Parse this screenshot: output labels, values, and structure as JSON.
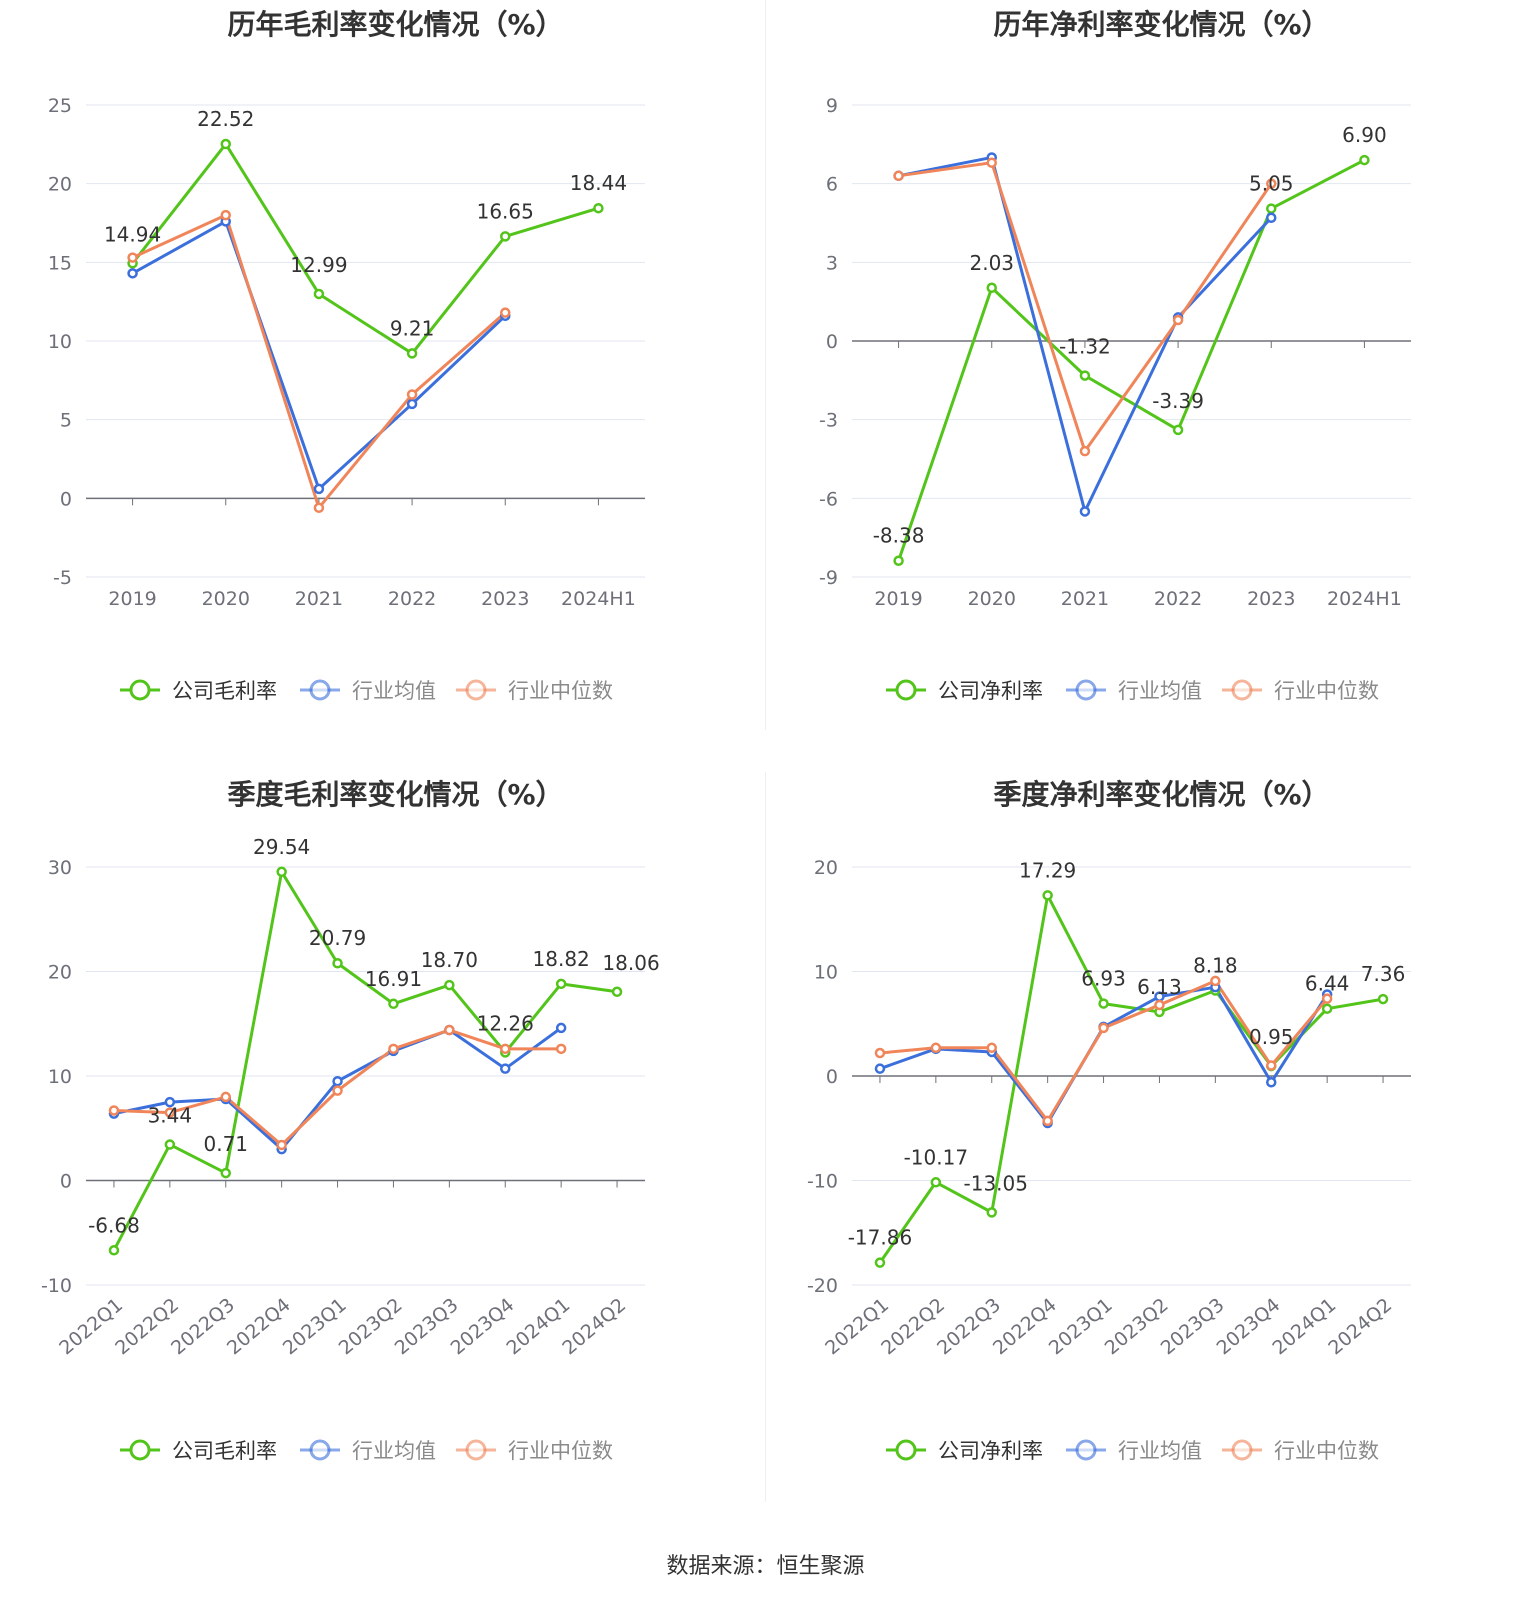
{
  "source": "数据来源：恒生聚源",
  "colors": {
    "company": "#52c41a",
    "industry_avg": "#3b6fdc",
    "industry_median": "#f0855a"
  },
  "chart_data": [
    {
      "type": "line",
      "title": "历年毛利率变化情况（%）",
      "categories": [
        "2019",
        "2020",
        "2021",
        "2022",
        "2023",
        "2024H1"
      ],
      "ylim": [
        -5,
        25
      ],
      "yticks": [
        25,
        20,
        15,
        10,
        5,
        0,
        -5
      ],
      "ytick_labels": [
        "25",
        "20",
        "15",
        "10",
        "5",
        "0",
        "-5"
      ],
      "rotate_x": false,
      "series": [
        {
          "name": "公司毛利率",
          "key": "company",
          "values": [
            14.94,
            22.52,
            12.99,
            9.21,
            16.65,
            18.44
          ],
          "labels": [
            "14.94",
            "22.52",
            "12.99",
            "9.21",
            "16.65",
            "18.44"
          ]
        },
        {
          "name": "行业均值",
          "key": "industry_avg",
          "values": [
            14.3,
            17.6,
            0.6,
            6.0,
            11.6,
            null
          ]
        },
        {
          "name": "行业中位数",
          "key": "industry_median",
          "values": [
            15.3,
            18.0,
            -0.6,
            6.6,
            11.8,
            null
          ]
        }
      ]
    },
    {
      "type": "line",
      "title": "历年净利率变化情况（%）",
      "categories": [
        "2019",
        "2020",
        "2021",
        "2022",
        "2023",
        "2024H1"
      ],
      "ylim": [
        -9,
        9
      ],
      "yticks": [
        9,
        6,
        3,
        0,
        -3,
        -6,
        -9
      ],
      "ytick_labels": [
        "9",
        "6",
        "3",
        "0",
        "-3",
        "-6",
        "-9"
      ],
      "rotate_x": false,
      "series": [
        {
          "name": "公司净利率",
          "key": "company",
          "values": [
            -8.38,
            2.03,
            -1.32,
            -3.39,
            5.05,
            6.9
          ],
          "labels": [
            "-8.38",
            "2.03",
            "-1.32",
            "-3.39",
            "5.05",
            "6.90"
          ]
        },
        {
          "name": "行业均值",
          "key": "industry_avg",
          "values": [
            6.3,
            7.0,
            -6.5,
            0.9,
            4.7,
            null
          ]
        },
        {
          "name": "行业中位数",
          "key": "industry_median",
          "values": [
            6.3,
            6.8,
            -4.2,
            0.8,
            6.0,
            null
          ]
        }
      ]
    },
    {
      "type": "line",
      "title": "季度毛利率变化情况（%）",
      "categories": [
        "2022Q1",
        "2022Q2",
        "2022Q3",
        "2022Q4",
        "2023Q1",
        "2023Q2",
        "2023Q3",
        "2023Q4",
        "2024Q1",
        "2024Q2"
      ],
      "ylim": [
        -10,
        30
      ],
      "yticks": [
        30,
        20,
        10,
        0,
        -10
      ],
      "ytick_labels": [
        "30",
        "20",
        "10",
        "0",
        "-10"
      ],
      "rotate_x": true,
      "series": [
        {
          "name": "公司毛利率",
          "key": "company",
          "values": [
            -6.68,
            3.44,
            0.71,
            29.54,
            20.79,
            16.91,
            18.7,
            12.26,
            18.82,
            18.06
          ],
          "labels": [
            "-6.68",
            "3.44",
            "0.71",
            "29.54",
            "20.79",
            "16.91",
            "18.70",
            "12.26",
            "18.82",
            "18.06"
          ]
        },
        {
          "name": "行业均值",
          "key": "industry_avg",
          "values": [
            6.4,
            7.5,
            7.8,
            3.0,
            9.5,
            12.4,
            14.4,
            10.7,
            14.6,
            null
          ]
        },
        {
          "name": "行业中位数",
          "key": "industry_median",
          "values": [
            6.7,
            6.5,
            8.0,
            3.4,
            8.6,
            12.6,
            14.4,
            12.6,
            12.6,
            null
          ]
        }
      ]
    },
    {
      "type": "line",
      "title": "季度净利率变化情况（%）",
      "categories": [
        "2022Q1",
        "2022Q2",
        "2022Q3",
        "2022Q4",
        "2023Q1",
        "2023Q2",
        "2023Q3",
        "2023Q4",
        "2024Q1",
        "2024Q2"
      ],
      "ylim": [
        -20,
        20
      ],
      "yticks": [
        20,
        10,
        0,
        -10,
        -20
      ],
      "ytick_labels": [
        "20",
        "10",
        "0",
        "-10",
        "-20"
      ],
      "rotate_x": true,
      "series": [
        {
          "name": "公司净利率",
          "key": "company",
          "values": [
            -17.86,
            -10.17,
            -13.05,
            17.29,
            6.93,
            6.13,
            8.18,
            0.95,
            6.44,
            7.36
          ],
          "labels": [
            "-17.86",
            "-10.17",
            "-13.05",
            "17.29",
            "6.93",
            "6.13",
            "8.18",
            "0.95",
            "6.44",
            "7.36"
          ]
        },
        {
          "name": "行业均值",
          "key": "industry_avg",
          "values": [
            0.7,
            2.6,
            2.3,
            -4.5,
            4.7,
            7.6,
            8.5,
            -0.6,
            7.8,
            null
          ]
        },
        {
          "name": "行业中位数",
          "key": "industry_median",
          "values": [
            2.2,
            2.7,
            2.7,
            -4.3,
            4.6,
            6.8,
            9.1,
            1.0,
            7.4,
            null
          ]
        }
      ]
    }
  ]
}
